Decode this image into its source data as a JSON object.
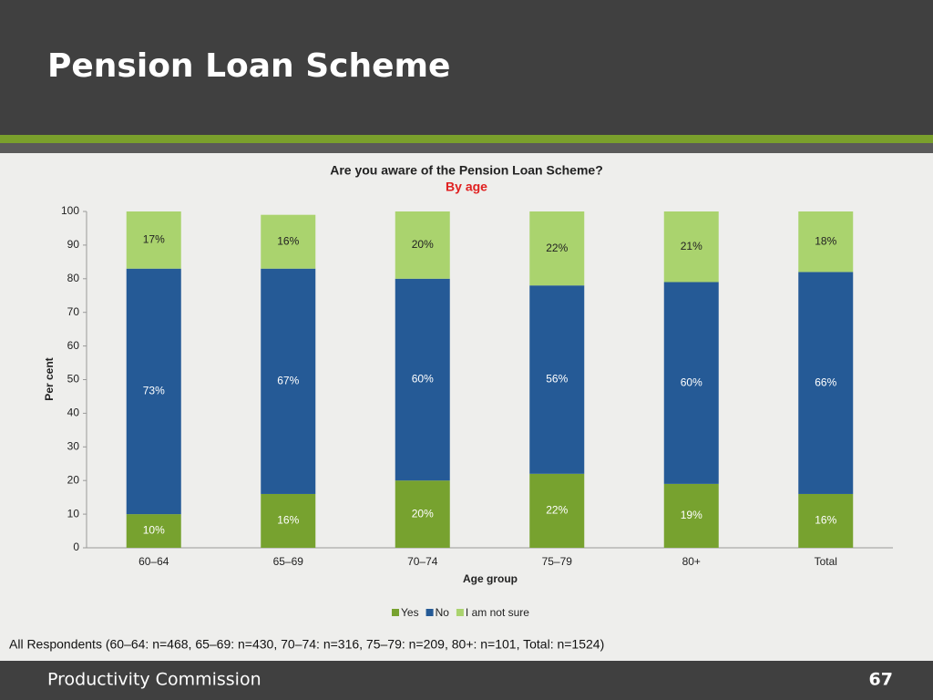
{
  "header": {
    "title": "Pension Loan Scheme"
  },
  "chart_data": {
    "type": "stacked_bar",
    "title": "Are you aware of the Pension Loan Scheme?",
    "subtitle": "By age",
    "x_label": "Age group",
    "y_label": "Per cent",
    "categories": [
      "60–64",
      "65–69",
      "70–74",
      "75–79",
      "80+",
      "Total"
    ],
    "series": [
      {
        "name": "Yes",
        "color": "#77a22f",
        "values": [
          10,
          16,
          20,
          22,
          19,
          16
        ],
        "value_labels": [
          "10%",
          "16%",
          "20%",
          "22%",
          "19%",
          "16%"
        ]
      },
      {
        "name": "No",
        "color": "#255a96",
        "values": [
          73,
          67,
          60,
          56,
          60,
          66
        ],
        "value_labels": [
          "73%",
          "67%",
          "60%",
          "56%",
          "60%",
          "66%"
        ]
      },
      {
        "name": "I am not sure",
        "color": "#aad36e",
        "values": [
          17,
          16,
          20,
          22,
          21,
          18
        ],
        "value_labels": [
          "17%",
          "16%",
          "20%",
          "22%",
          "21%",
          "18%"
        ]
      }
    ],
    "ylim": [
      0,
      100
    ],
    "yticks": [
      0,
      10,
      20,
      30,
      40,
      50,
      60,
      70,
      80,
      90,
      100
    ],
    "grid": false,
    "legend": "bottom"
  },
  "footnote": "All Respondents (60–64: n=468, 65–69: n=430, 70–74: n=316, 75–79: n=209, 80+: n=101, Total: n=1524)",
  "footer": {
    "organization": "Productivity Commission",
    "page_number": "67"
  }
}
